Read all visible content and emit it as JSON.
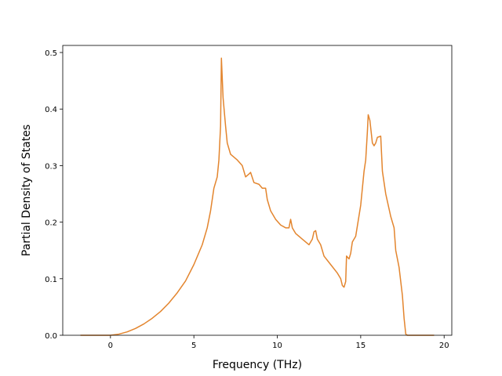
{
  "chart_data": {
    "type": "line",
    "xlabel": "Frequency (THz)",
    "ylabel": "Partial Density of States",
    "x": [
      -1.8,
      0,
      0.5,
      1,
      1.5,
      2,
      2.5,
      3,
      3.5,
      4,
      4.5,
      5,
      5.5,
      5.8,
      6,
      6.2,
      6.4,
      6.5,
      6.6,
      6.65,
      6.75,
      6.9,
      7.0,
      7.2,
      7.4,
      7.6,
      7.9,
      8.1,
      8.3,
      8.4,
      8.6,
      8.9,
      9.1,
      9.3,
      9.4,
      9.6,
      9.9,
      10.2,
      10.5,
      10.7,
      10.8,
      10.9,
      11.1,
      11.5,
      11.9,
      12.1,
      12.2,
      12.3,
      12.4,
      12.6,
      12.8,
      13.2,
      13.6,
      13.8,
      13.9,
      14.0,
      14.1,
      14.15,
      14.3,
      14.4,
      14.5,
      14.7,
      15.0,
      15.2,
      15.3,
      15.4,
      15.45,
      15.55,
      15.7,
      15.8,
      15.9,
      16.0,
      16.2,
      16.3,
      16.5,
      16.8,
      17.0,
      17.1,
      17.3,
      17.5,
      17.6,
      17.7,
      17.8,
      19.4
    ],
    "series": [
      {
        "color": "#e3852e",
        "values": [
          0,
          0,
          0.002,
          0.006,
          0.012,
          0.02,
          0.03,
          0.042,
          0.057,
          0.075,
          0.096,
          0.125,
          0.16,
          0.19,
          0.22,
          0.26,
          0.28,
          0.31,
          0.37,
          0.49,
          0.42,
          0.37,
          0.34,
          0.32,
          0.315,
          0.31,
          0.3,
          0.28,
          0.285,
          0.288,
          0.27,
          0.267,
          0.26,
          0.26,
          0.24,
          0.22,
          0.205,
          0.195,
          0.19,
          0.19,
          0.205,
          0.19,
          0.18,
          0.17,
          0.16,
          0.17,
          0.183,
          0.185,
          0.17,
          0.16,
          0.14,
          0.125,
          0.11,
          0.1,
          0.088,
          0.085,
          0.095,
          0.14,
          0.135,
          0.145,
          0.165,
          0.175,
          0.23,
          0.29,
          0.31,
          0.36,
          0.39,
          0.38,
          0.34,
          0.335,
          0.34,
          0.35,
          0.352,
          0.29,
          0.25,
          0.21,
          0.19,
          0.15,
          0.12,
          0.07,
          0.03,
          0.002,
          0,
          0
        ]
      }
    ],
    "xlim": [
      -2.86,
      20.46
    ],
    "xticks": [
      0,
      5,
      10,
      15,
      20
    ],
    "ylim": [
      0,
      0.5125
    ],
    "yticks": [
      {
        "value": 0,
        "label": "0.0"
      },
      0.1,
      0.2,
      0.3,
      0.4,
      0.5
    ]
  }
}
